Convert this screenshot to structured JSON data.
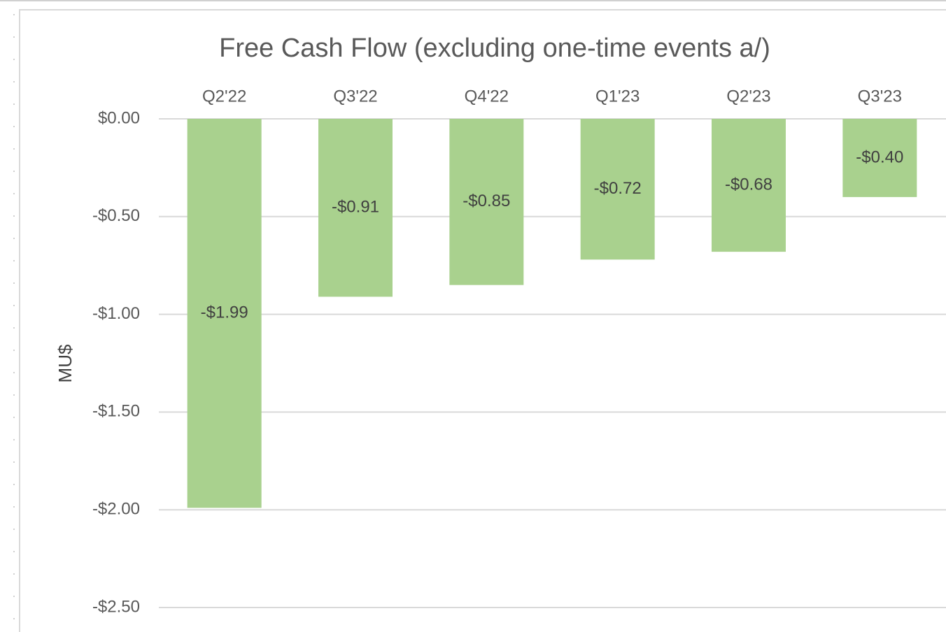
{
  "chart_data": {
    "type": "bar",
    "title": "Free Cash Flow (excluding one-time events a/)",
    "y_label": "MU$",
    "categories": [
      "Q2'22",
      "Q3'22",
      "Q4'22",
      "Q1'23",
      "Q2'23",
      "Q3'23"
    ],
    "values": [
      -1.99,
      -0.91,
      -0.85,
      -0.72,
      -0.68,
      -0.4
    ],
    "value_labels": [
      "-$1.99",
      "-$0.91",
      "-$0.85",
      "-$0.72",
      "-$0.68",
      "-$0.40"
    ],
    "color": "#a9d18e",
    "ylim": [
      -2.5,
      0
    ],
    "yticks": [
      {
        "value": 0,
        "label": "$0.00"
      },
      {
        "value": -0.5,
        "label": "-$0.50"
      },
      {
        "value": -1,
        "label": "-$1.00"
      },
      {
        "value": -1.5,
        "label": "-$1.50"
      },
      {
        "value": -2,
        "label": "-$2.00"
      },
      {
        "value": -2.5,
        "label": "-$2.50"
      }
    ],
    "grid": true
  }
}
